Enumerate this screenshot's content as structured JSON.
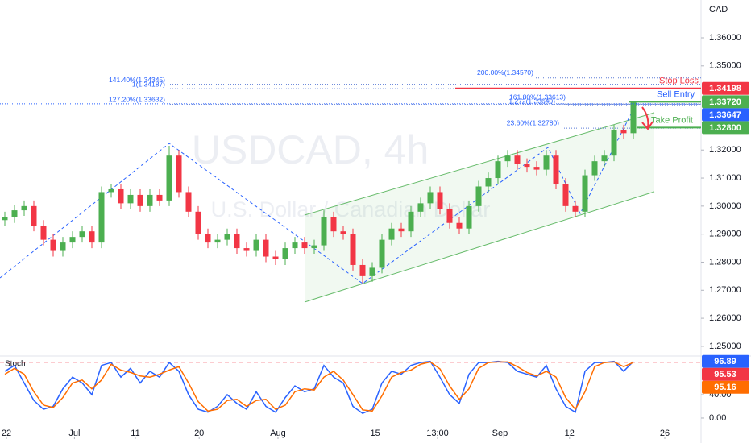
{
  "chart_data": {
    "type": "candlestick",
    "title": "USDCAD, 4h",
    "subtitle": "U.S. Dollar / Canadian Dollar",
    "currency": "CAD",
    "up_color": "#4caf50",
    "down_color": "#f23645",
    "open": [
      1.295,
      1.296,
      1.2985,
      1.3,
      1.293,
      1.288,
      1.284,
      1.287,
      1.289,
      1.291,
      1.287,
      1.305,
      1.306,
      1.301,
      1.304,
      1.3,
      1.304,
      1.302,
      1.318,
      1.305,
      1.298,
      1.29,
      1.287,
      1.288,
      1.29,
      1.285,
      1.284,
      1.288,
      1.282,
      1.281,
      1.285,
      1.287,
      1.285,
      1.286,
      1.296,
      1.291,
      1.29,
      1.279,
      1.275,
      1.278,
      1.288,
      1.292,
      1.291,
      1.298,
      1.301,
      1.305,
      1.299,
      1.294,
      1.292,
      1.3,
      1.307,
      1.31,
      1.316,
      1.318,
      1.315,
      1.314,
      1.313,
      1.318,
      1.308,
      1.3,
      1.298,
      1.311,
      1.316,
      1.318,
      1.327,
      1.326
    ],
    "high": [
      1.298,
      1.3005,
      1.302,
      1.302,
      1.295,
      1.29,
      1.289,
      1.291,
      1.293,
      1.293,
      1.307,
      1.308,
      1.308,
      1.306,
      1.306,
      1.306,
      1.306,
      1.3215,
      1.32,
      1.307,
      1.3,
      1.292,
      1.29,
      1.292,
      1.292,
      1.287,
      1.29,
      1.29,
      1.284,
      1.287,
      1.289,
      1.289,
      1.288,
      1.2985,
      1.298,
      1.293,
      1.292,
      1.281,
      1.28,
      1.29,
      1.294,
      1.294,
      1.3,
      1.303,
      1.307,
      1.307,
      1.301,
      1.296,
      1.302,
      1.309,
      1.312,
      1.318,
      1.32,
      1.32,
      1.317,
      1.316,
      1.32,
      1.32,
      1.31,
      1.302,
      1.313,
      1.318,
      1.32,
      1.329,
      1.329,
      1.3375
    ],
    "low": [
      1.293,
      1.294,
      1.2965,
      1.291,
      1.286,
      1.282,
      1.282,
      1.285,
      1.287,
      1.285,
      1.285,
      1.303,
      1.299,
      1.299,
      1.298,
      1.298,
      1.3,
      1.3,
      1.303,
      1.296,
      1.288,
      1.285,
      1.285,
      1.286,
      1.283,
      1.282,
      1.282,
      1.28,
      1.279,
      1.279,
      1.283,
      1.283,
      1.283,
      1.284,
      1.289,
      1.288,
      1.277,
      1.2725,
      1.273,
      1.276,
      1.286,
      1.289,
      1.289,
      1.296,
      1.299,
      1.297,
      1.292,
      1.29,
      1.29,
      1.298,
      1.305,
      1.308,
      1.314,
      1.313,
      1.312,
      1.311,
      1.311,
      1.306,
      1.298,
      1.296,
      1.296,
      1.309,
      1.314,
      1.316,
      1.324,
      1.324
    ],
    "close": [
      1.296,
      1.2985,
      1.3,
      1.293,
      1.288,
      1.284,
      1.287,
      1.289,
      1.291,
      1.287,
      1.305,
      1.306,
      1.301,
      1.304,
      1.3,
      1.304,
      1.302,
      1.318,
      1.305,
      1.298,
      1.29,
      1.287,
      1.288,
      1.29,
      1.285,
      1.284,
      1.288,
      1.282,
      1.281,
      1.285,
      1.287,
      1.285,
      1.286,
      1.296,
      1.291,
      1.29,
      1.279,
      1.275,
      1.278,
      1.288,
      1.292,
      1.291,
      1.298,
      1.301,
      1.305,
      1.299,
      1.294,
      1.292,
      1.3,
      1.307,
      1.31,
      1.316,
      1.318,
      1.315,
      1.314,
      1.313,
      1.318,
      1.308,
      1.3,
      1.298,
      1.311,
      1.316,
      1.318,
      1.327,
      1.326,
      1.337
    ],
    "xlim": [
      -0.5,
      72
    ],
    "xticks": [
      {
        "value": 0.17,
        "label": "22"
      },
      {
        "value": 7.2,
        "label": "Jul"
      },
      {
        "value": 13.5,
        "label": "11"
      },
      {
        "value": 20.1,
        "label": "20"
      },
      {
        "value": 28.25,
        "label": "Aug"
      },
      {
        "value": 38.3,
        "label": "15"
      },
      {
        "value": 44.75,
        "label": "13:00"
      },
      {
        "value": 51.2,
        "label": "Sep"
      },
      {
        "value": 58.4,
        "label": "12"
      },
      {
        "value": 68.25,
        "label": "26"
      }
    ],
    "ylim": [
      1.2471,
      1.3735
    ],
    "yticks": [
      {
        "value": 1.36,
        "label": "1.36000"
      },
      {
        "value": 1.35,
        "label": "1.35000"
      },
      {
        "value": 1.32,
        "label": "1.32000"
      },
      {
        "value": 1.31,
        "label": "1.31000"
      },
      {
        "value": 1.3,
        "label": "1.30000"
      },
      {
        "value": 1.29,
        "label": "1.29000"
      },
      {
        "value": 1.28,
        "label": "1.28000"
      },
      {
        "value": 1.27,
        "label": "1.27000"
      },
      {
        "value": 1.26,
        "label": "1.26000"
      },
      {
        "value": 1.25,
        "label": "1.25000"
      }
    ],
    "levels": [
      {
        "name": "Stop Loss",
        "value": 1.34198,
        "color": "#f23645",
        "text_color": "#f23645"
      },
      {
        "name": "Sell Entry",
        "value": 1.3372,
        "label": "1.33720",
        "color": "#4caf50",
        "text_color": "#2962ff"
      },
      {
        "name": "Take Profit",
        "value": 1.328,
        "label": "1.32800",
        "color": "#4caf50",
        "text_color": "#4caf50"
      }
    ],
    "last_price": {
      "value": 1.33647,
      "color": "#2962ff"
    },
    "fib_levels": [
      {
        "label": "141.40%(1.34345)",
        "value": 1.34345
      },
      {
        "label": "1(1.34187)",
        "value": 1.34187
      },
      {
        "label": "127.20%(1.33632)",
        "value": 1.33632
      },
      {
        "label": "200.00%(1.34570)",
        "value": 1.3457
      },
      {
        "label": "161.80%(1.33613)",
        "value": 1.33613
      },
      {
        "label": "1.272(1.33640)",
        "value": 1.3364
      },
      {
        "label": "23.60%(1.32780)",
        "value": 1.3278
      }
    ],
    "indicator": {
      "type": "line",
      "title": "Stoch",
      "ylim": [
        -29,
        102
      ],
      "yticks": [
        {
          "value": 0,
          "label": "0.00"
        },
        {
          "value": 40,
          "label": "40.00"
        }
      ],
      "level": {
        "value": 95.53,
        "color": "#f23645"
      },
      "series": [
        {
          "color": "#2962ff",
          "values": [
            80,
            90,
            60,
            30,
            15,
            20,
            50,
            70,
            60,
            40,
            90,
            95,
            70,
            85,
            60,
            80,
            70,
            95,
            80,
            40,
            15,
            10,
            20,
            40,
            25,
            15,
            45,
            20,
            10,
            35,
            55,
            45,
            50,
            90,
            70,
            60,
            20,
            8,
            15,
            60,
            80,
            75,
            90,
            95,
            97,
            70,
            40,
            25,
            75,
            95,
            95,
            97,
            95,
            80,
            75,
            70,
            90,
            50,
            20,
            10,
            80,
            95,
            95,
            97,
            80,
            96.89
          ]
        },
        {
          "color": "#ff6d00",
          "values": [
            75,
            85,
            75,
            45,
            22,
            18,
            35,
            60,
            65,
            50,
            65,
            92,
            82,
            78,
            72,
            70,
            75,
            82,
            88,
            60,
            28,
            12,
            15,
            30,
            32,
            20,
            30,
            32,
            15,
            22,
            45,
            50,
            48,
            70,
            80,
            65,
            40,
            14,
            12,
            38,
            70,
            78,
            82,
            92,
            96,
            84,
            55,
            32,
            50,
            85,
            95,
            96,
            96,
            88,
            78,
            72,
            80,
            70,
            35,
            15,
            45,
            88,
            95,
            96,
            88,
            95.16
          ]
        }
      ]
    }
  }
}
